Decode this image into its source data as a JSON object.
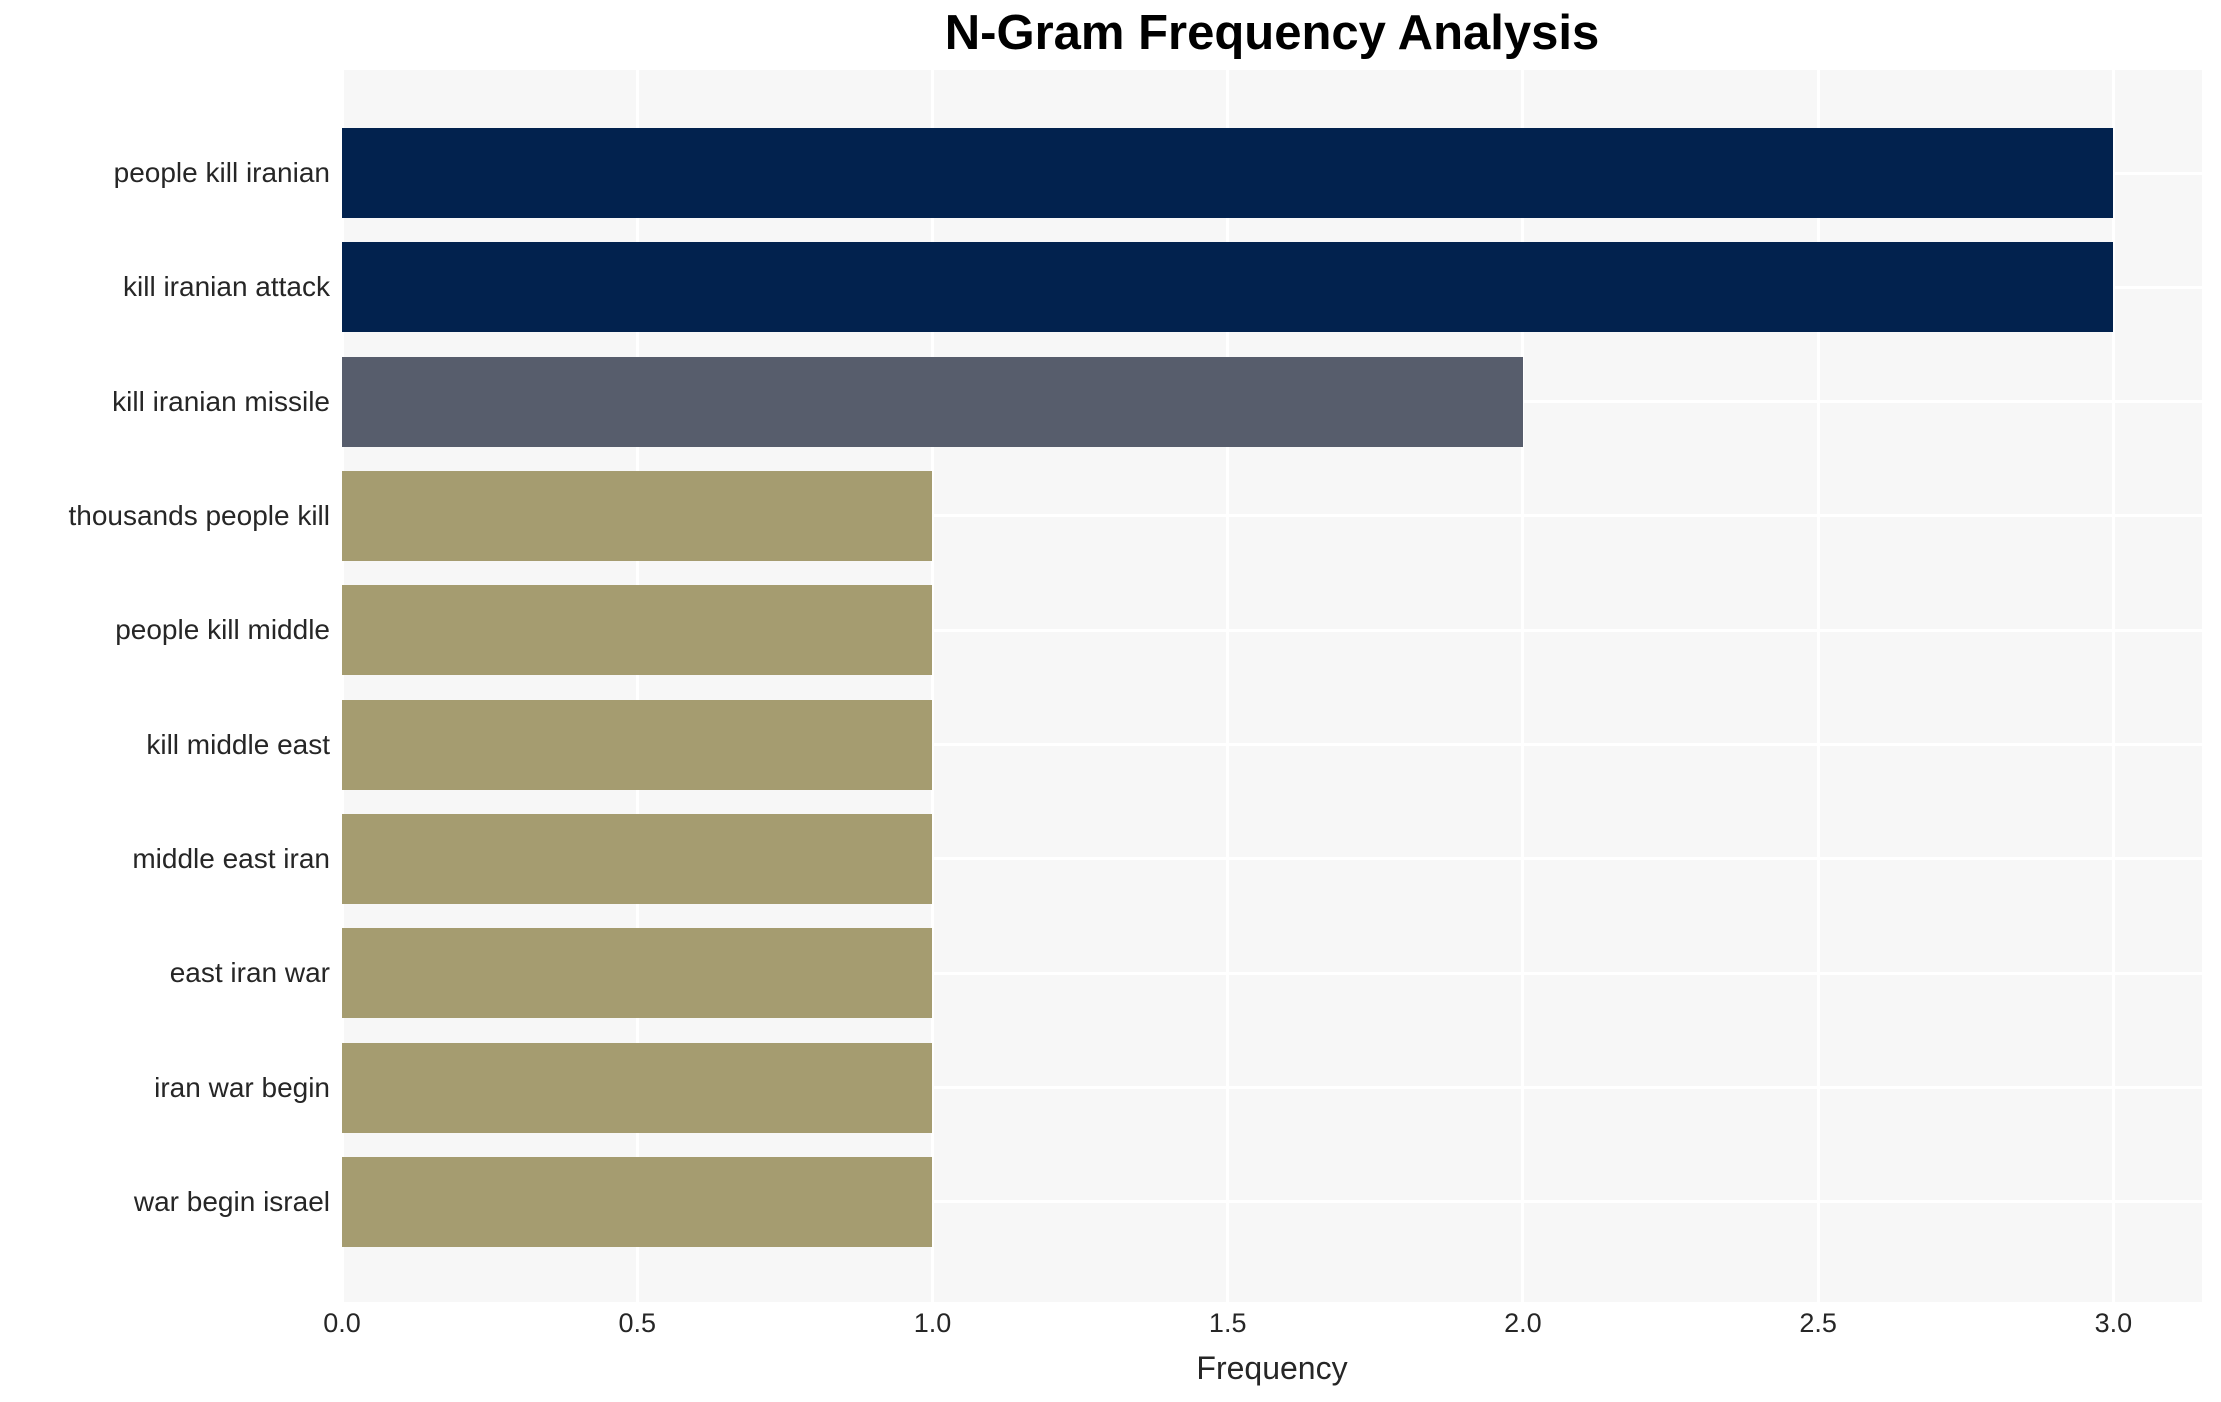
{
  "chart_data": {
    "type": "bar",
    "orientation": "horizontal",
    "title": "N-Gram Frequency Analysis",
    "xlabel": "Frequency",
    "ylabel": "",
    "categories": [
      "people kill iranian",
      "kill iranian attack",
      "kill iranian missile",
      "thousands people kill",
      "people kill middle",
      "kill middle east",
      "middle east iran",
      "east iran war",
      "iran war begin",
      "war begin israel"
    ],
    "values": [
      3,
      3,
      2,
      1,
      1,
      1,
      1,
      1,
      1,
      1
    ],
    "bar_colors": [
      "#02224e",
      "#02224e",
      "#575d6c",
      "#a59c70",
      "#a59c70",
      "#a59c70",
      "#a59c70",
      "#a59c70",
      "#a59c70",
      "#a59c70"
    ],
    "xticks": [
      0.0,
      0.5,
      1.0,
      1.5,
      2.0,
      2.5,
      3.0
    ],
    "xtick_labels": [
      "0.0",
      "0.5",
      "1.0",
      "1.5",
      "2.0",
      "2.5",
      "3.0"
    ],
    "xlim": [
      0,
      3.15
    ],
    "grid": true,
    "legend": false,
    "colors": {
      "plot_background": "#f7f7f7",
      "figure_background": "#ffffff",
      "gridline": "#ffffff",
      "tick_text": "#262626",
      "title_text": "#000000"
    }
  }
}
